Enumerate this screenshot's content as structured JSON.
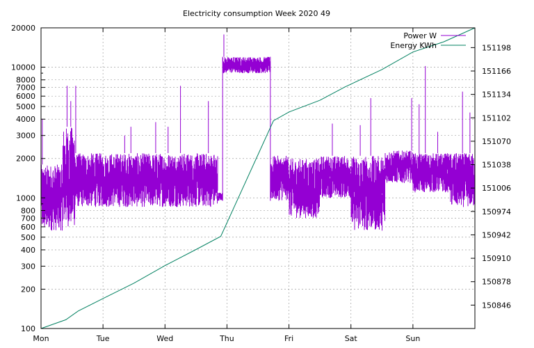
{
  "chart_data": {
    "type": "line",
    "title": "Electricity consumption Week 2020 49",
    "x_categories": [
      "Mon",
      "Tue",
      "Wed",
      "Thu",
      "Fri",
      "Sat",
      "Sun"
    ],
    "x_range_days": [
      0,
      7
    ],
    "y_left": {
      "scale": "log",
      "range": [
        100,
        20000
      ],
      "ticks": [
        100,
        200,
        300,
        400,
        500,
        600,
        700,
        800,
        1000,
        2000,
        3000,
        4000,
        5000,
        6000,
        7000,
        8000,
        10000,
        20000
      ],
      "tick_labels": [
        "100",
        "200",
        "300",
        "400",
        "500",
        "600",
        "700",
        "800",
        "1000",
        "2000",
        "3000",
        "4000",
        "5000",
        "6000",
        "7000",
        "8000",
        "10000",
        "20000"
      ]
    },
    "y_right": {
      "scale": "linear",
      "range": [
        150814,
        151225
      ],
      "ticks": [
        150846,
        150878,
        150910,
        150942,
        150974,
        151006,
        151038,
        151070,
        151102,
        151134,
        151166,
        151198
      ],
      "tick_labels": [
        "150846",
        "150878",
        "150910",
        "150942",
        "150974",
        "151006",
        "151038",
        "151070",
        "151102",
        "151134",
        "151166",
        "151198"
      ]
    },
    "grid": true,
    "legend_position": "top-right",
    "series": [
      {
        "name": "Power W",
        "axis": "left",
        "color": "#9400d3",
        "style": "noisy-band",
        "segments": [
          {
            "from": 0.0,
            "to": 0.35,
            "low": 560,
            "high": 1800
          },
          {
            "from": 0.35,
            "to": 0.55,
            "low": 600,
            "high": 3500
          },
          {
            "from": 0.55,
            "to": 2.85,
            "low": 850,
            "high": 2200
          },
          {
            "from": 2.85,
            "to": 2.93,
            "low": 950,
            "high": 1100
          },
          {
            "from": 2.93,
            "to": 3.7,
            "low": 9000,
            "high": 12000
          },
          {
            "from": 3.7,
            "to": 4.0,
            "low": 950,
            "high": 2100
          },
          {
            "from": 4.0,
            "to": 4.5,
            "low": 700,
            "high": 2000
          },
          {
            "from": 4.5,
            "to": 5.0,
            "low": 1000,
            "high": 2100
          },
          {
            "from": 5.0,
            "to": 5.55,
            "low": 560,
            "high": 2100
          },
          {
            "from": 5.55,
            "to": 6.0,
            "low": 1300,
            "high": 2300
          },
          {
            "from": 6.0,
            "to": 6.6,
            "low": 1100,
            "high": 2200
          },
          {
            "from": 6.6,
            "to": 7.0,
            "low": 850,
            "high": 2200
          }
        ],
        "spikes": [
          {
            "x": 0.02,
            "y": 4000
          },
          {
            "x": 0.42,
            "y": 7200
          },
          {
            "x": 0.48,
            "y": 5500
          },
          {
            "x": 0.56,
            "y": 7200
          },
          {
            "x": 1.45,
            "y": 3500
          },
          {
            "x": 1.35,
            "y": 3000
          },
          {
            "x": 1.85,
            "y": 3800
          },
          {
            "x": 2.05,
            "y": 3500
          },
          {
            "x": 2.25,
            "y": 7200
          },
          {
            "x": 2.7,
            "y": 5500
          },
          {
            "x": 2.95,
            "y": 17800
          },
          {
            "x": 4.7,
            "y": 3700
          },
          {
            "x": 5.15,
            "y": 3600
          },
          {
            "x": 5.32,
            "y": 5800
          },
          {
            "x": 5.98,
            "y": 5800
          },
          {
            "x": 6.1,
            "y": 5200
          },
          {
            "x": 6.2,
            "y": 10200
          },
          {
            "x": 6.4,
            "y": 3200
          },
          {
            "x": 6.8,
            "y": 6500
          },
          {
            "x": 6.92,
            "y": 4500
          }
        ]
      },
      {
        "name": "Energy KWh",
        "axis": "right",
        "color": "#008060",
        "style": "line",
        "x": [
          0,
          0.4,
          0.6,
          1.0,
          1.5,
          2.0,
          2.5,
          2.9,
          3.75,
          4.0,
          4.5,
          4.9,
          5.0,
          5.5,
          6.0,
          6.5,
          7.0
        ],
        "y": [
          150814,
          150826,
          150838,
          150855,
          150876,
          150900,
          150922,
          150940,
          151098,
          151110,
          151126,
          151144,
          151148,
          151168,
          151192,
          151206,
          151225
        ]
      }
    ]
  }
}
